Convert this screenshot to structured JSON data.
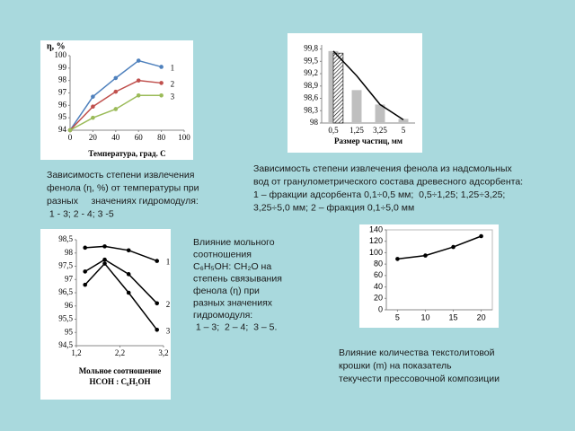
{
  "chart_data": [
    {
      "type": "line",
      "title": "η, %",
      "x_label": "Температура, град. С",
      "x": [
        0,
        20,
        40,
        60,
        80
      ],
      "xlim": [
        0,
        100
      ],
      "xticks": [
        0,
        20,
        40,
        60,
        80,
        100
      ],
      "ylim": [
        94,
        100
      ],
      "yticks": [
        94,
        95,
        96,
        97,
        98,
        99,
        100
      ],
      "grid": false,
      "series": [
        {
          "name": "1",
          "color": "#4f81bd",
          "values": [
            94,
            96.7,
            98.2,
            99.6,
            99.1
          ]
        },
        {
          "name": "2",
          "color": "#c0504d",
          "values": [
            94,
            95.9,
            97.1,
            98,
            97.8
          ]
        },
        {
          "name": "3",
          "color": "#9bbb59",
          "values": [
            94,
            95,
            95.7,
            96.8,
            96.8
          ]
        }
      ],
      "caption": [
        "Зависимость степени извлечения",
        "фенола (η, %) от температуры при",
        "разных     значениях гидромодуля:",
        " 1 - 3; 2 - 4; 3 -5"
      ]
    },
    {
      "type": "bar",
      "x_label": "Размер частиц, мм",
      "categories": [
        "0,5",
        "1,25",
        "3,25",
        "5"
      ],
      "ylim": [
        98,
        99.9
      ],
      "yticks": [
        {
          "value": 98,
          "label": "98"
        },
        {
          "value": 98.3,
          "label": "98,3"
        },
        {
          "value": 98.6,
          "label": "98,6"
        },
        {
          "value": 98.9,
          "label": "98,9"
        },
        {
          "value": 99.2,
          "label": "99,2"
        },
        {
          "value": 99.5,
          "label": "99,5"
        },
        {
          "value": 99.8,
          "label": "99,8"
        }
      ],
      "grid": false,
      "series": [
        {
          "color": "#bfbfbf",
          "values": [
            99.75,
            98.8,
            98.45,
            98.1
          ]
        },
        {
          "color": "#ffffff",
          "hatch": true,
          "values": [
            99.7,
            null,
            null,
            null
          ]
        },
        {
          "type": "line",
          "color": "#000000",
          "values": [
            99.75,
            99.15,
            98.45,
            98.08
          ]
        }
      ],
      "caption": [
        "Зависимость степени извлечения фенола из надсмольных",
        "вод от гранулометрического состава древесного адсорбента:",
        "1 – фракции адсорбента 0,1÷0,5 мм;  0,5÷1,25; 1,25÷3,25;",
        "3,25÷5,0 мм; 2 – фракция 0,1÷5,0 мм"
      ]
    },
    {
      "type": "line",
      "x_label": [
        "Мольное соотношение",
        "HCOH : C₆H₅OH"
      ],
      "xlim": [
        1.2,
        3.2
      ],
      "xticks": [
        {
          "value": 1.2,
          "label": "1,2"
        },
        {
          "value": 2.2,
          "label": "2,2"
        },
        {
          "value": 3.2,
          "label": "3,2"
        }
      ],
      "ylim": [
        94.5,
        98.5
      ],
      "yticks": [
        {
          "value": 94.5,
          "label": "94,5"
        },
        95,
        {
          "value": 95.5,
          "label": "95,5"
        },
        96,
        {
          "value": 96.5,
          "label": "96,5"
        },
        97,
        {
          "value": 97.5,
          "label": "97,5"
        },
        98,
        {
          "value": 98.5,
          "label": "98,5"
        }
      ],
      "grid": false,
      "x": [
        1.4,
        1.85,
        2.4,
        3.05
      ],
      "series": [
        {
          "name": "1",
          "color": "#000000",
          "values": [
            98.2,
            98.25,
            98.1,
            97.7
          ]
        },
        {
          "name": "2",
          "color": "#000000",
          "values": [
            97.3,
            97.75,
            97.2,
            96.1
          ]
        },
        {
          "name": "3",
          "color": "#000000",
          "values": [
            96.8,
            97.6,
            96.5,
            95.1
          ]
        }
      ],
      "caption": [
        "Влияние мольного",
        "соотношения",
        "C₆H₅OH: CH₂O на",
        "степень связывания",
        "фенола (η) при",
        "разных значениях",
        "гидромодуля:",
        " 1 – 3;  2 – 4;  3 – 5."
      ]
    },
    {
      "type": "line",
      "x": [
        5,
        10,
        15,
        20
      ],
      "xlim": [
        3,
        22
      ],
      "xticks": [
        5,
        10,
        15,
        20
      ],
      "ylim": [
        0,
        140
      ],
      "yticks": [
        0,
        20,
        40,
        60,
        80,
        100,
        120,
        140
      ],
      "grid": false,
      "series": [
        {
          "color": "#000000",
          "values": [
            89,
            95,
            110,
            129
          ]
        }
      ],
      "caption": [
        "Влияние количества текстолитовой",
        "крошки (m) на показатель",
        "текучести прессовочной композиции"
      ]
    }
  ]
}
